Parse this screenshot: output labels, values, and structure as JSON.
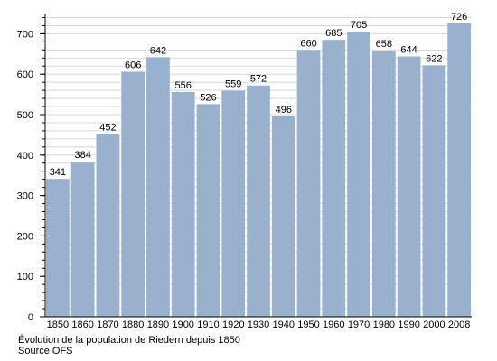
{
  "chart_data": {
    "type": "bar",
    "categories": [
      "1850",
      "1860",
      "1870",
      "1880",
      "1890",
      "1900",
      "1910",
      "1920",
      "1930",
      "1940",
      "1950",
      "1960",
      "1970",
      "1980",
      "1990",
      "2000",
      "2008"
    ],
    "values": [
      341,
      384,
      452,
      606,
      642,
      556,
      526,
      559,
      572,
      496,
      660,
      685,
      705,
      658,
      644,
      622,
      726
    ],
    "title": "",
    "xlabel": "",
    "ylabel": "",
    "ylim": [
      0,
      750
    ],
    "y_ticks": [
      0,
      100,
      200,
      300,
      400,
      500,
      600,
      700
    ],
    "grid": true,
    "bar_color": "#9ab1ce",
    "grid_color": "#d8d8d8"
  },
  "caption": {
    "line1": "Évolution de la population de Riedern depuis 1850",
    "line2": "Source OFS"
  }
}
